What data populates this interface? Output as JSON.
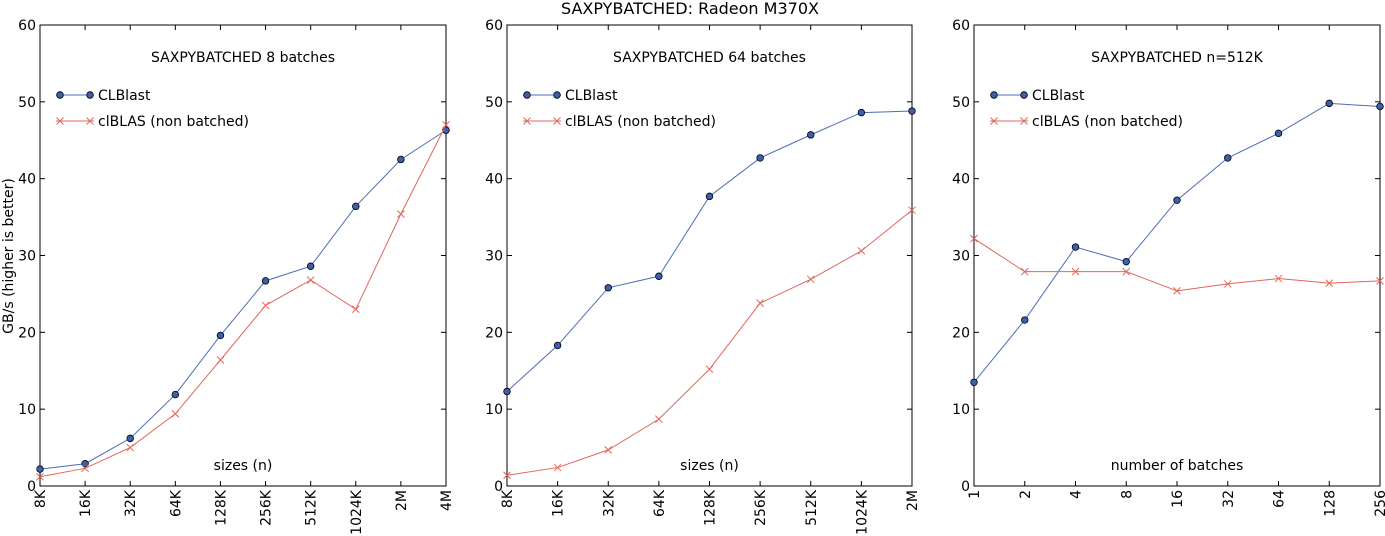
{
  "suptitle": "SAXPYBATCHED: Radeon M370X",
  "ylabel": "GB/s (higher is better)",
  "colors": {
    "clblast": "#4b6cb5",
    "clblast_fill": "#3d5fb0",
    "clblas": "#e0675c"
  },
  "chart_data": [
    {
      "type": "line",
      "title": "SAXPYBATCHED 8 batches",
      "xlabel": "sizes (n)",
      "ylabel": "GB/s (higher is better)",
      "ylim": [
        0,
        60
      ],
      "yticks": [
        0,
        10,
        20,
        30,
        40,
        50,
        60
      ],
      "categories": [
        "8K",
        "16K",
        "32K",
        "64K",
        "128K",
        "256K",
        "512K",
        "1024K",
        "2M",
        "4M"
      ],
      "legend": "upper-left",
      "series": [
        {
          "name": "CLBlast",
          "marker": "circle",
          "values": [
            2.2,
            2.9,
            6.2,
            11.9,
            19.6,
            26.7,
            28.6,
            36.4,
            42.5,
            46.3
          ]
        },
        {
          "name": "clBLAS (non batched)",
          "marker": "x",
          "values": [
            1.2,
            2.3,
            5.0,
            9.4,
            16.4,
            23.5,
            26.8,
            23.0,
            35.4,
            47.0
          ]
        }
      ]
    },
    {
      "type": "line",
      "title": "SAXPYBATCHED 64 batches",
      "xlabel": "sizes (n)",
      "ylim": [
        0,
        60
      ],
      "yticks": [
        0,
        10,
        20,
        30,
        40,
        50,
        60
      ],
      "categories": [
        "8K",
        "16K",
        "32K",
        "64K",
        "128K",
        "256K",
        "512K",
        "1024K",
        "2M"
      ],
      "legend": "upper-left",
      "series": [
        {
          "name": "CLBlast",
          "marker": "circle",
          "values": [
            12.3,
            18.3,
            25.8,
            27.3,
            37.7,
            42.7,
            45.7,
            48.6,
            48.8
          ]
        },
        {
          "name": "clBLAS (non batched)",
          "marker": "x",
          "values": [
            1.4,
            2.4,
            4.7,
            8.7,
            15.2,
            23.8,
            26.9,
            30.6,
            35.9
          ]
        }
      ]
    },
    {
      "type": "line",
      "title": "SAXPYBATCHED n=512K",
      "xlabel": "number of batches",
      "ylim": [
        0,
        60
      ],
      "yticks": [
        0,
        10,
        20,
        30,
        40,
        50,
        60
      ],
      "categories": [
        "1",
        "2",
        "4",
        "8",
        "16",
        "32",
        "64",
        "128",
        "256"
      ],
      "legend": "upper-left",
      "series": [
        {
          "name": "CLBlast",
          "marker": "circle",
          "values": [
            13.5,
            21.6,
            31.1,
            29.2,
            37.2,
            42.7,
            45.9,
            49.8,
            49.4
          ]
        },
        {
          "name": "clBLAS (non batched)",
          "marker": "x",
          "values": [
            32.2,
            27.9,
            27.9,
            27.9,
            25.4,
            26.3,
            27.0,
            26.4,
            26.7
          ]
        }
      ]
    }
  ]
}
